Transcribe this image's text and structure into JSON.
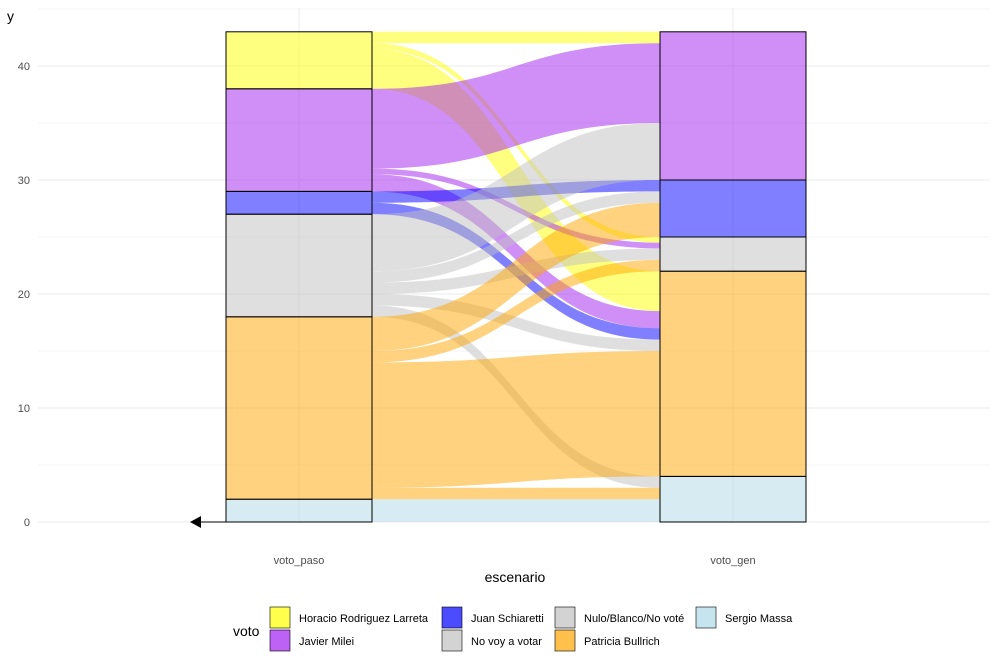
{
  "chart_data": {
    "type": "alluvial",
    "xlabel": "escenario",
    "ylabel": "y",
    "ylim": [
      0,
      45
    ],
    "y_ticks": [
      0,
      10,
      20,
      30,
      40
    ],
    "categories": [
      "voto_paso",
      "voto_gen"
    ],
    "legend": {
      "title": "voto",
      "position": "bottom",
      "entries": [
        {
          "name": "Horacio Rodriguez Larreta",
          "color": "#FFFF00"
        },
        {
          "name": "Javier Milei",
          "color": "#A020F0"
        },
        {
          "name": "Juan Schiaretti",
          "color": "#0000FF"
        },
        {
          "name": "No voy a votar",
          "color": "#C0C0C0"
        },
        {
          "name": "Nulo/Blanco/No voté",
          "color": "#C0C0C0"
        },
        {
          "name": "Patricia Bullrich",
          "color": "#FFA500"
        },
        {
          "name": "Sergio Massa",
          "color": "#ADD8E6"
        }
      ]
    },
    "strata": {
      "voto_paso": [
        {
          "voto": "Sergio Massa",
          "value": 2
        },
        {
          "voto": "Patricia Bullrich",
          "value": 16
        },
        {
          "voto": "Nulo/Blanco/No voté",
          "value": 9
        },
        {
          "voto": "Juan Schiaretti",
          "value": 2
        },
        {
          "voto": "Javier Milei",
          "value": 9
        },
        {
          "voto": "Horacio Rodriguez Larreta",
          "value": 5
        }
      ],
      "voto_gen": [
        {
          "voto": "Sergio Massa",
          "value": 4
        },
        {
          "voto": "Patricia Bullrich",
          "value": 18
        },
        {
          "voto": "Nulo/Blanco/No voté",
          "value": 3
        },
        {
          "voto": "Juan Schiaretti",
          "value": 5
        },
        {
          "voto": "Javier Milei",
          "value": 13
        }
      ]
    },
    "flows": [
      {
        "from": "Horacio Rodriguez Larreta",
        "to": "Javier Milei",
        "value": 1
      },
      {
        "from": "Horacio Rodriguez Larreta",
        "to": "Nulo/Blanco/No voté",
        "value": 0.5
      },
      {
        "from": "Horacio Rodriguez Larreta",
        "to": "Patricia Bullrich",
        "value": 3.5
      },
      {
        "from": "Javier Milei",
        "to": "Javier Milei",
        "value": 7
      },
      {
        "from": "Javier Milei",
        "to": "Nulo/Blanco/No voté",
        "value": 0.5
      },
      {
        "from": "Javier Milei",
        "to": "Patricia Bullrich",
        "value": 1.5
      },
      {
        "from": "Juan Schiaretti",
        "to": "Juan Schiaretti",
        "value": 1
      },
      {
        "from": "Juan Schiaretti",
        "to": "Patricia Bullrich",
        "value": 1
      },
      {
        "from": "Nulo/Blanco/No voté",
        "to": "Javier Milei",
        "value": 5
      },
      {
        "from": "Nulo/Blanco/No voté",
        "to": "Juan Schiaretti",
        "value": 1
      },
      {
        "from": "Nulo/Blanco/No voté",
        "to": "Nulo/Blanco/No voté",
        "value": 1
      },
      {
        "from": "Nulo/Blanco/No voté",
        "to": "Patricia Bullrich",
        "value": 1
      },
      {
        "from": "Nulo/Blanco/No voté",
        "to": "Sergio Massa",
        "value": 1
      },
      {
        "from": "Patricia Bullrich",
        "to": "Juan Schiaretti",
        "value": 3
      },
      {
        "from": "Patricia Bullrich",
        "to": "Nulo/Blanco/No voté",
        "value": 1
      },
      {
        "from": "Patricia Bullrich",
        "to": "Patricia Bullrich",
        "value": 11
      },
      {
        "from": "Patricia Bullrich",
        "to": "Sergio Massa",
        "value": 1
      },
      {
        "from": "Sergio Massa",
        "to": "Sergio Massa",
        "value": 2
      }
    ],
    "grid": true
  }
}
